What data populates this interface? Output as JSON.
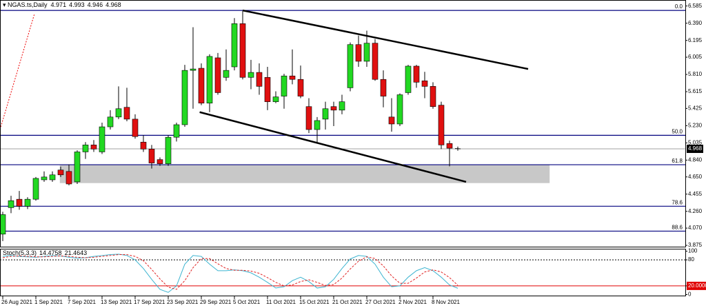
{
  "chart_data": [
    {
      "type": "candlestick",
      "title": "NGAS.ts,Daily",
      "categories": [
        "26 Aug 2021",
        null,
        null,
        null,
        "1 Sep 2021",
        null,
        null,
        null,
        "7 Sep 2021",
        null,
        null,
        null,
        "13 Sep 2021",
        null,
        null,
        null,
        "17 Sep 2021",
        null,
        null,
        null,
        "23 Sep 2021",
        null,
        null,
        null,
        "29 Sep 2021",
        null,
        null,
        null,
        "5 Oct 2021",
        null,
        null,
        null,
        "11 Oct 2021",
        null,
        null,
        null,
        "15 Oct 2021",
        null,
        null,
        null,
        "21 Oct 2021",
        null,
        null,
        null,
        "27 Oct 2021",
        null,
        null,
        null,
        "2 Nov 2021",
        null,
        null,
        null,
        "8 Nov 2021",
        null,
        null,
        null
      ],
      "open": [
        4.002,
        4.302,
        4.397,
        4.318,
        4.397,
        4.617,
        4.617,
        4.728,
        4.712,
        4.594,
        4.933,
        5.012,
        4.933,
        5.217,
        5.328,
        5.438,
        5.304,
        5.044,
        4.965,
        4.846,
        4.799,
        5.099,
        5.241,
        5.856,
        5.88,
        5.485,
        5.998,
        5.777,
        5.896,
        6.385,
        5.777,
        5.833,
        5.777,
        5.501,
        5.564,
        5.793,
        5.754,
        5.446,
        5.186,
        5.304,
        5.446,
        5.406,
        5.659,
        6.148,
        5.959,
        6.164,
        5.754,
        5.328,
        5.249,
        5.604,
        5.904,
        5.738,
        5.675,
        5.462,
        5.028,
        4.971
      ],
      "high": [
        4.255,
        4.436,
        4.491,
        4.42,
        4.649,
        4.712,
        4.712,
        4.767,
        4.791,
        4.951,
        5.044,
        5.067,
        5.264,
        5.406,
        5.675,
        5.659,
        5.359,
        5.122,
        5.012,
        4.87,
        5.122,
        5.264,
        5.919,
        6.345,
        5.935,
        6.038,
        6.053,
        6.093,
        6.448,
        6.527,
        5.975,
        5.935,
        5.896,
        5.619,
        5.817,
        6.093,
        5.911,
        5.541,
        5.328,
        5.501,
        5.501,
        5.58,
        6.172,
        6.25,
        6.306,
        6.211,
        5.856,
        5.541,
        5.596,
        5.919,
        5.919,
        5.84,
        5.722,
        5.501,
        5.06,
        4.993
      ],
      "low": [
        3.923,
        4.239,
        4.278,
        4.286,
        4.381,
        4.594,
        4.594,
        4.649,
        4.554,
        4.57,
        4.854,
        4.933,
        4.909,
        5.186,
        5.304,
        5.28,
        5.083,
        4.933,
        4.744,
        4.775,
        4.775,
        5.051,
        5.217,
        5.422,
        5.462,
        5.383,
        5.58,
        5.738,
        5.856,
        5.754,
        5.643,
        5.58,
        5.406,
        5.485,
        5.422,
        5.698,
        5.541,
        5.146,
        5.044,
        5.186,
        5.225,
        5.359,
        5.619,
        5.896,
        5.896,
        5.738,
        5.438,
        5.162,
        5.225,
        5.58,
        5.659,
        5.541,
        5.422,
        4.965,
        4.77,
        4.946
      ],
      "close": [
        4.223,
        4.381,
        4.318,
        4.397,
        4.633,
        4.649,
        4.673,
        4.673,
        4.57,
        4.933,
        5.012,
        4.965,
        5.217,
        5.328,
        5.422,
        5.304,
        5.107,
        4.965,
        4.807,
        4.799,
        5.099,
        5.241,
        5.856,
        5.872,
        5.485,
        6.014,
        5.604,
        5.856,
        6.385,
        5.777,
        5.833,
        5.675,
        5.501,
        5.556,
        5.793,
        5.754,
        5.564,
        5.186,
        5.288,
        5.422,
        5.406,
        5.501,
        6.148,
        5.959,
        6.164,
        5.754,
        5.564,
        5.249,
        5.58,
        5.904,
        5.722,
        5.675,
        5.446,
        5.012,
        4.975,
        4.968
      ],
      "up_color": "#22d822",
      "down_color": "#e01010",
      "ylim": [
        3.86,
        6.645
      ],
      "yticks": [
        6.585,
        {
          "value": 6.39,
          "label": "6.390"
        },
        6.195,
        6.005,
        {
          "value": 5.81,
          "label": "5.810"
        },
        5.615,
        5.425,
        {
          "value": 5.23,
          "label": "5.230"
        },
        5.035,
        {
          "value": 4.84,
          "label": "4.840"
        },
        {
          "value": 4.65,
          "label": "4.650"
        },
        4.455,
        {
          "value": 4.26,
          "label": "4.260"
        },
        {
          "value": 4.07,
          "label": "4.070"
        },
        3.875
      ],
      "levels": [
        {
          "label": "0.0",
          "value": 6.535
        },
        {
          "label": "50.0",
          "value": 5.121
        },
        {
          "label": "61.8",
          "value": 4.788
        },
        {
          "label": "78.6",
          "value": 4.318
        },
        {
          "label": "88.6",
          "value": 4.036
        }
      ],
      "level_color": "#00007f",
      "zone": {
        "x": [
          6.9,
          66.1
        ],
        "y": [
          4.58,
          4.79
        ],
        "color": "#c8c8c8"
      },
      "trendlines": [
        {
          "x": [
            29,
            63.5
          ],
          "y": [
            6.535,
            5.872
          ]
        },
        {
          "x": [
            23.8,
            56
          ],
          "y": [
            5.383,
            4.594
          ]
        }
      ]
    },
    {
      "type": "stochastic",
      "title": "Stoch(5,3,3)",
      "series": [
        {
          "color": "#3cb4d0",
          "dash": false,
          "values": [
            88,
            90,
            88,
            87,
            86,
            88,
            90,
            89,
            86,
            84,
            85,
            88,
            90,
            92,
            93,
            90,
            80,
            60,
            35,
            12,
            5,
            20,
            70,
            90,
            88,
            70,
            55,
            55,
            57,
            55,
            50,
            40,
            28,
            15,
            18,
            32,
            40,
            30,
            15,
            18,
            35,
            60,
            82,
            90,
            88,
            70,
            40,
            18,
            20,
            40,
            55,
            62,
            55,
            40,
            22,
            14.4758
          ]
        },
        {
          "color": "#e02020",
          "dash": true,
          "values": [
            85,
            88,
            89,
            88,
            87,
            87,
            88,
            89,
            88,
            86,
            85,
            86,
            88,
            90,
            92,
            92,
            88,
            78,
            58,
            36,
            17,
            12,
            32,
            62,
            83,
            83,
            71,
            60,
            56,
            56,
            54,
            49,
            39,
            28,
            20,
            22,
            30,
            34,
            28,
            21,
            23,
            38,
            59,
            77,
            87,
            83,
            66,
            43,
            26,
            26,
            38,
            52,
            57,
            52,
            39,
            21.4643
          ]
        }
      ],
      "ylim": [
        -4,
        104
      ],
      "yticks": [
        100,
        80,
        {
          "value": 20,
          "label": "20.0000"
        },
        0
      ],
      "levels": [
        {
          "value": 80,
          "color": "#000000",
          "dash": true
        },
        {
          "value": 20,
          "color": "#e00000",
          "dash": false
        }
      ]
    }
  ]
}
